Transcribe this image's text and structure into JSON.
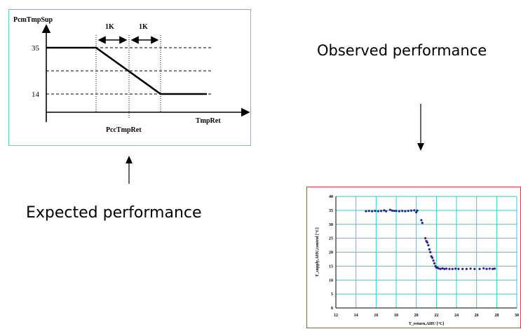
{
  "diagram": {
    "y_axis_label": "PcmTmpSup",
    "x_axis_label": "TmpRet",
    "center_label": "PccTmpRet",
    "span_left_label": "1K",
    "span_right_label": "1K",
    "y_high_label": "35",
    "y_low_label": "14",
    "border_color": "#5fd0bf"
  },
  "captions": {
    "observed": "Observed performance",
    "expected": "Expected performance"
  },
  "arrows": {
    "observed_arrow": "arrow-down-icon",
    "expected_arrow": "arrow-up-icon"
  },
  "chart_data": {
    "type": "scatter",
    "xlabel": "T_return,AHU [°C]",
    "ylabel": "T_supply,AHU,control [°C]",
    "xlim": [
      12,
      30
    ],
    "ylim": [
      0,
      40
    ],
    "x_ticks": [
      "12",
      "14",
      "16",
      "18",
      "20",
      "22",
      "24",
      "26",
      "28",
      "30"
    ],
    "y_ticks": [
      "0",
      "5",
      "10",
      "15",
      "20",
      "25",
      "30",
      "35",
      "40"
    ],
    "grid": true,
    "grid_color": "#33cccc",
    "point_color": "#1f2a8a",
    "border_color": "#e23a3a",
    "series": [
      {
        "x": [
          15.0,
          15.3,
          15.6,
          15.9,
          16.2,
          16.5,
          16.8,
          17.0,
          17.4,
          17.6,
          17.8,
          18.0,
          18.3,
          18.6,
          18.9,
          19.2,
          19.5,
          19.8,
          20.0,
          20.1,
          20.5,
          20.6,
          20.9,
          21.0,
          21.1,
          21.2,
          21.3,
          21.4,
          21.5,
          21.6,
          21.7,
          21.8,
          21.9,
          22.0,
          22.1,
          22.2,
          22.4,
          22.6,
          22.8,
          23.0,
          23.3,
          23.6,
          23.9,
          24.2,
          24.6,
          25.0,
          25.4,
          25.8,
          26.3,
          26.7,
          27.0,
          27.3,
          27.6,
          27.8
        ],
        "y": [
          34.7,
          34.8,
          34.7,
          34.8,
          34.7,
          34.8,
          35.0,
          34.7,
          35.2,
          34.9,
          34.8,
          34.8,
          34.7,
          34.8,
          34.7,
          34.8,
          34.9,
          35.0,
          34.3,
          34.9,
          31.5,
          30.5,
          25.0,
          24.0,
          23.5,
          22.5,
          21.0,
          20.0,
          18.5,
          18.0,
          17.0,
          16.0,
          15.0,
          14.5,
          14.5,
          14.2,
          14.0,
          14.2,
          14.0,
          14.1,
          14.0,
          14.0,
          14.1,
          14.0,
          14.0,
          14.0,
          14.1,
          14.0,
          14.0,
          14.2,
          14.0,
          14.1,
          14.0,
          14.1
        ]
      }
    ]
  }
}
